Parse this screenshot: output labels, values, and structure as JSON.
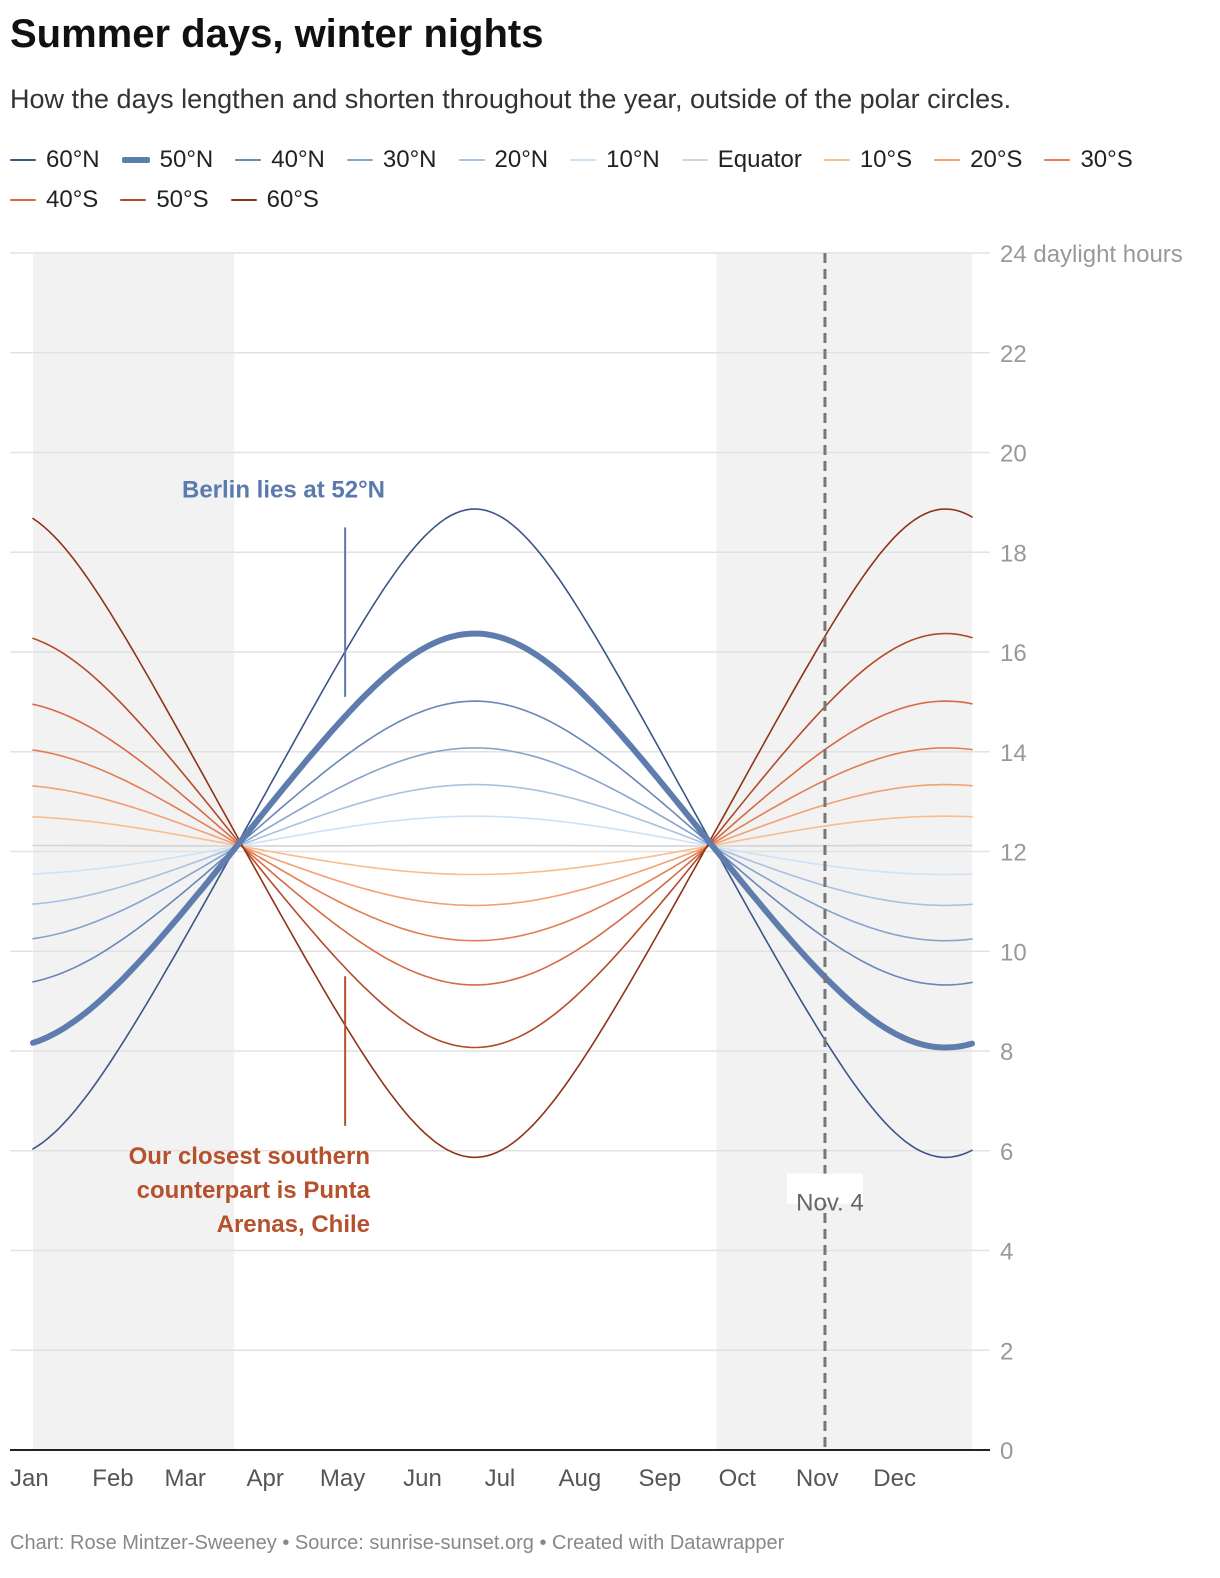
{
  "title": "Summer days, winter nights",
  "subtitle": "How the days lengthen and shorten throughout the year, outside of the polar circles.",
  "footer": "Chart: Rose Mintzer-Sweeney • Source: sunrise-sunset.org • Created with Datawrapper",
  "chart_data": {
    "type": "line",
    "ylabel": "daylight hours",
    "ylim": [
      0,
      24
    ],
    "y_ticks": [
      0,
      2,
      4,
      6,
      8,
      10,
      12,
      14,
      16,
      18,
      20,
      22,
      24
    ],
    "y_top_label": "24 daylight hours",
    "x_unit": "day of year",
    "xlim": [
      1,
      365
    ],
    "month_labels": [
      "Jan",
      "Feb",
      "Mar",
      "Apr",
      "May",
      "Jun",
      "Jul",
      "Aug",
      "Sep",
      "Oct",
      "Nov",
      "Dec"
    ],
    "month_starts": [
      1,
      32,
      60,
      91,
      121,
      152,
      182,
      213,
      244,
      274,
      305,
      335
    ],
    "grid": true,
    "legend_position": "top",
    "shaded_periods": [
      [
        1,
        79
      ],
      [
        266,
        365
      ]
    ],
    "marker": {
      "label": "Nov. 4",
      "day": 308
    },
    "annotations": {
      "north": {
        "text": "Berlin lies at 52°N",
        "color": "#5a7aad",
        "line_day": 122,
        "line_from_hours": 18.5,
        "line_to_hours": 15.1
      },
      "south": {
        "lines": [
          "Our closest southern",
          "counterpart is Punta",
          "Arenas, Chile"
        ],
        "color": "#b5512c",
        "line_day": 122,
        "line_from_hours": 9.5,
        "line_to_hours": 6.5
      }
    },
    "series": [
      {
        "name": "60°N",
        "lat": 60,
        "color": "#3a5587",
        "width": 1.6
      },
      {
        "name": "50°N",
        "lat": 50,
        "color": "#5e7dae",
        "width": 6,
        "bold": true
      },
      {
        "name": "40°N",
        "lat": 40,
        "color": "#6886b6",
        "width": 1.6
      },
      {
        "name": "30°N",
        "lat": 30,
        "color": "#88a3cb",
        "width": 1.6
      },
      {
        "name": "20°N",
        "lat": 20,
        "color": "#a9c0e2",
        "width": 1.6
      },
      {
        "name": "10°N",
        "lat": 10,
        "color": "#cfe2f4",
        "width": 1.6
      },
      {
        "name": "Equator",
        "lat": 0,
        "color": "#d4d4d4",
        "width": 1.6
      },
      {
        "name": "10°S",
        "lat": -10,
        "color": "#f7be90",
        "width": 1.6
      },
      {
        "name": "20°S",
        "lat": -20,
        "color": "#f2a173",
        "width": 1.6
      },
      {
        "name": "30°S",
        "lat": -30,
        "color": "#e37e53",
        "width": 1.6
      },
      {
        "name": "40°S",
        "lat": -40,
        "color": "#d76a45",
        "width": 1.6
      },
      {
        "name": "50°S",
        "lat": -50,
        "color": "#b34a28",
        "width": 1.6
      },
      {
        "name": "60°S",
        "lat": -60,
        "color": "#8e3316",
        "width": 1.6
      }
    ]
  }
}
